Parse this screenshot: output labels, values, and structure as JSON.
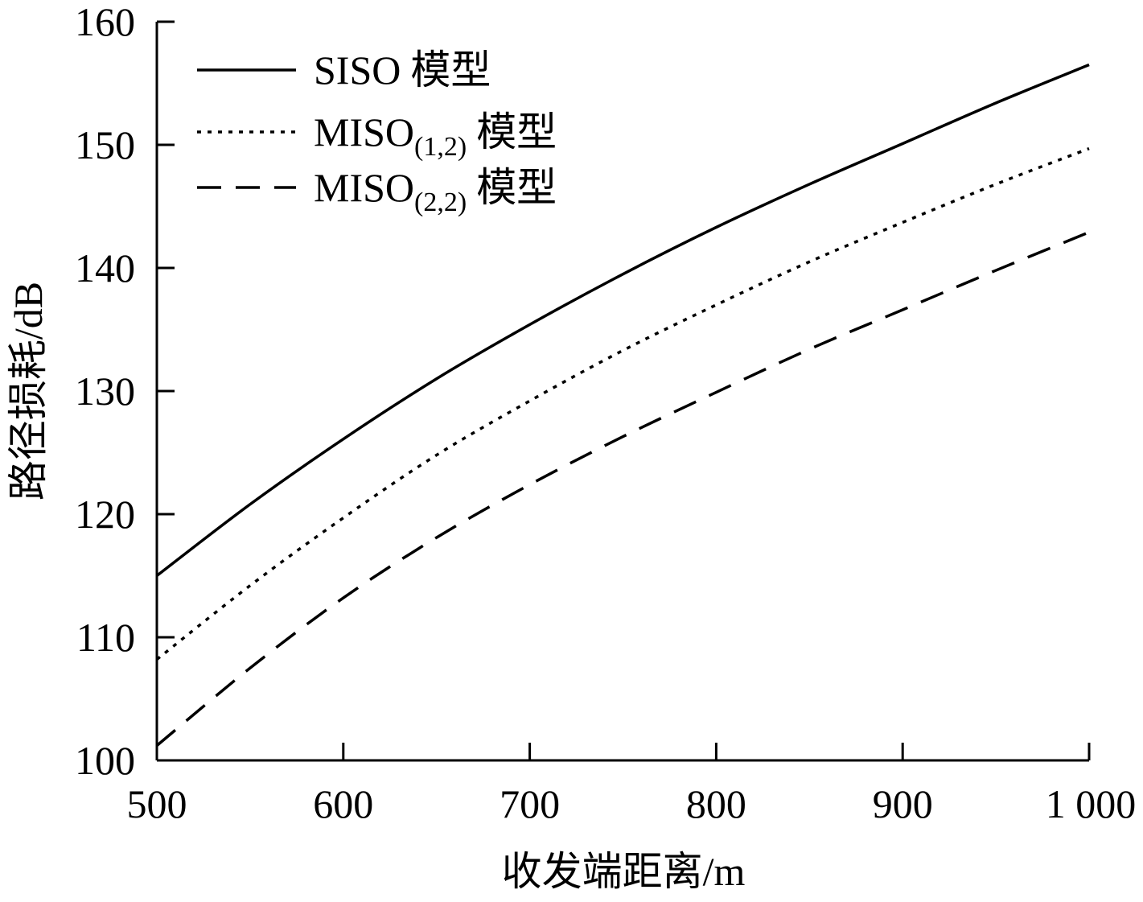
{
  "chart_data": {
    "type": "line",
    "title": "",
    "xlabel": "收发端距离/m",
    "ylabel": "路径损耗/dB",
    "xlim": [
      500,
      1000
    ],
    "ylim": [
      100,
      160
    ],
    "xticks": [
      500,
      600,
      700,
      800,
      900,
      1000
    ],
    "xtick_labels": [
      "500",
      "600",
      "700",
      "800",
      "900",
      "1 000"
    ],
    "yticks": [
      100,
      110,
      120,
      130,
      140,
      150,
      160
    ],
    "ytick_labels": [
      "100",
      "110",
      "120",
      "130",
      "140",
      "150",
      "160"
    ],
    "grid": false,
    "legend_position": "top-left",
    "x": [
      500,
      550,
      600,
      650,
      700,
      750,
      800,
      850,
      900,
      950,
      1000
    ],
    "series": [
      {
        "name": "SISO 模型",
        "legend_main": "SISO",
        "legend_sub": "",
        "legend_suffix": "模型",
        "style": "solid",
        "values": [
          115.0,
          120.8,
          126.1,
          131.0,
          135.4,
          139.5,
          143.3,
          146.8,
          150.1,
          153.4,
          156.5
        ]
      },
      {
        "name": "MISO(1,2) 模型",
        "legend_main": "MISO",
        "legend_sub": "(1,2)",
        "legend_suffix": "模型",
        "style": "dotted",
        "values": [
          108.2,
          114.2,
          119.7,
          124.8,
          129.2,
          133.3,
          137.0,
          140.5,
          143.7,
          146.8,
          149.7
        ]
      },
      {
        "name": "MISO(2,2) 模型",
        "legend_main": "MISO",
        "legend_sub": "(2,2)",
        "legend_suffix": "模型",
        "style": "dashed",
        "values": [
          101.2,
          107.5,
          113.2,
          118.1,
          122.4,
          126.3,
          129.9,
          133.4,
          136.6,
          139.8,
          142.9
        ]
      }
    ]
  }
}
